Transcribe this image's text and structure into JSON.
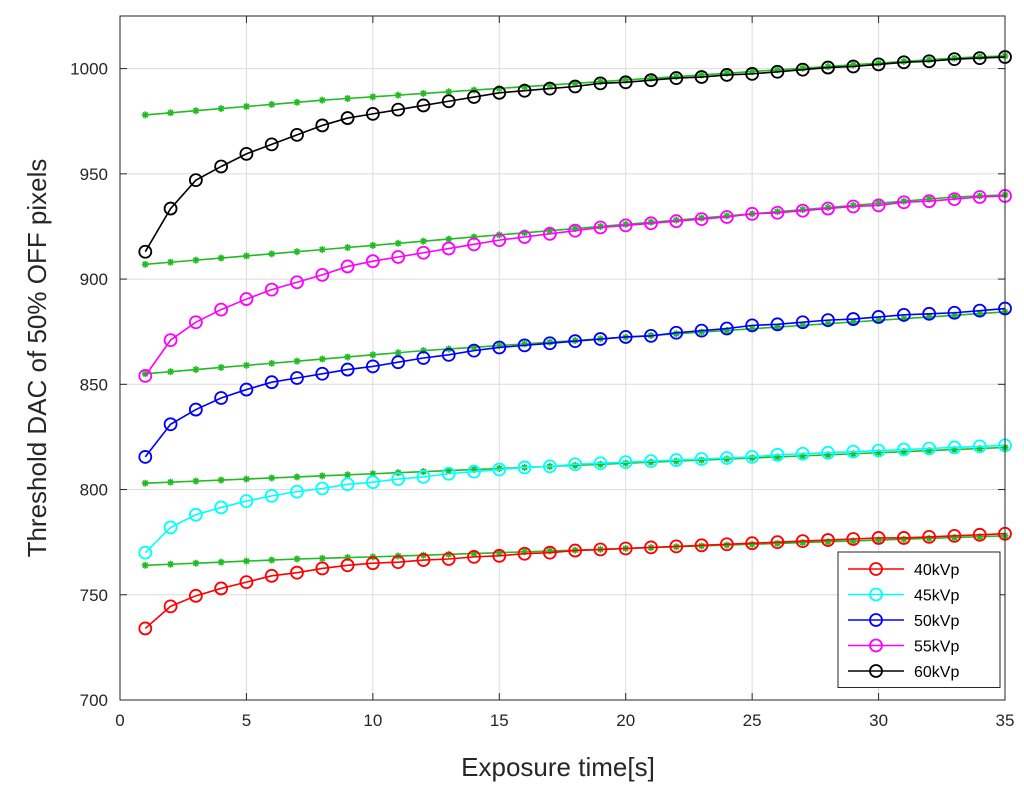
{
  "chart_data": {
    "type": "line",
    "title": "",
    "xlabel": "Exposure time[s]",
    "ylabel": "Threshold DAC of 50% OFF pixels",
    "xlim": [
      0,
      35
    ],
    "ylim": [
      700,
      1025
    ],
    "xticks": [
      0,
      5,
      10,
      15,
      20,
      25,
      30,
      35
    ],
    "yticks": [
      700,
      750,
      800,
      850,
      900,
      950,
      1000
    ],
    "grid": true,
    "legend_position": "bottom-right",
    "fit_color": "#22bb22",
    "x": [
      1,
      2,
      3,
      4,
      5,
      6,
      7,
      8,
      9,
      10,
      11,
      12,
      13,
      14,
      15,
      16,
      17,
      18,
      19,
      20,
      21,
      22,
      23,
      24,
      25,
      26,
      27,
      28,
      29,
      30,
      31,
      32,
      33,
      34,
      35
    ],
    "series": [
      {
        "name": "40kVp",
        "color": "#ff0000",
        "values": [
          734,
          744.5,
          749.5,
          753,
          756,
          759,
          760.5,
          762.5,
          764,
          765,
          765.5,
          766.5,
          767,
          768,
          768.5,
          769.5,
          770,
          771,
          771.5,
          772,
          772.5,
          773,
          773.5,
          774,
          774.5,
          775,
          775.5,
          776,
          776.5,
          777,
          777,
          777.5,
          778,
          778.5,
          779
        ],
        "fit": [
          764,
          764.5,
          765,
          765.5,
          766,
          766.5,
          767,
          767.3,
          767.7,
          768,
          768.4,
          768.8,
          769.2,
          769.6,
          770,
          770.4,
          770.8,
          771.2,
          771.6,
          772,
          772.4,
          772.8,
          773.2,
          773.6,
          774,
          774.4,
          774.8,
          775.2,
          775.6,
          776,
          776.4,
          776.8,
          777.2,
          777.6,
          778
        ]
      },
      {
        "name": "45kVp",
        "color": "#00ffff",
        "values": [
          770,
          782,
          788,
          791.5,
          794.5,
          797,
          799,
          800.5,
          802.5,
          803.5,
          805,
          806,
          807.5,
          808.5,
          809.5,
          810.5,
          811,
          812,
          812.5,
          813,
          813.5,
          814,
          814.5,
          815,
          815.5,
          816.5,
          817,
          817.5,
          818,
          818.5,
          819,
          819.5,
          820,
          820.5,
          821
        ],
        "fit": [
          803,
          803.5,
          804,
          804.5,
          805,
          805.5,
          806,
          806.5,
          807,
          807.5,
          808,
          808.5,
          809,
          809.5,
          810,
          810.5,
          811,
          811.5,
          812,
          812.5,
          813,
          813.5,
          814,
          814.5,
          815,
          815.5,
          816,
          816.5,
          817,
          817.5,
          818,
          818.5,
          819,
          819.5,
          820
        ]
      },
      {
        "name": "50kVp",
        "color": "#0000ff",
        "values": [
          815.5,
          831,
          838,
          843.5,
          847.5,
          851,
          853,
          855,
          857,
          858.5,
          860.5,
          862.5,
          864,
          866,
          867.5,
          868.5,
          869.5,
          870.5,
          871.5,
          872.5,
          873,
          874.5,
          875.5,
          876.5,
          878,
          878.5,
          879.5,
          880.5,
          881,
          882,
          883,
          883.5,
          884,
          885,
          886
        ],
        "fit": [
          855,
          856,
          857,
          858,
          859,
          860,
          861,
          862,
          863,
          864,
          865,
          866,
          866.8,
          867.6,
          868.4,
          869.2,
          870,
          870.8,
          871.6,
          872.4,
          873.2,
          874,
          874.8,
          875.6,
          876.4,
          877.2,
          878,
          878.8,
          879.6,
          880.4,
          881.2,
          882,
          882.8,
          883.6,
          884.4
        ]
      },
      {
        "name": "55kVp",
        "color": "#ff00ff",
        "values": [
          854,
          871,
          879.5,
          885.5,
          890.5,
          895,
          898.5,
          902,
          906,
          908.5,
          910.5,
          912.5,
          914.5,
          916.5,
          918.5,
          920,
          921.5,
          923,
          924.5,
          925.5,
          926.5,
          927.5,
          928.5,
          929.5,
          931,
          931.5,
          932.5,
          933.5,
          934.5,
          935,
          936.5,
          937,
          938,
          939,
          939.5
        ],
        "fit": [
          907,
          908,
          909,
          910,
          911,
          912,
          913,
          914,
          915,
          916,
          917,
          918,
          919,
          920,
          921,
          922,
          923,
          924,
          925,
          926,
          927,
          928,
          929,
          930,
          931,
          932,
          933,
          934,
          935,
          936,
          937,
          938,
          939,
          939.5,
          940
        ]
      },
      {
        "name": "60kVp",
        "color": "#000000",
        "values": [
          913,
          933.5,
          947,
          953.5,
          959.5,
          964,
          968.5,
          973,
          976.5,
          978.5,
          980.5,
          982.5,
          984.5,
          986.5,
          988.5,
          989.5,
          990.5,
          991.5,
          993,
          993.5,
          994.5,
          995.5,
          996,
          997,
          997.5,
          998.5,
          999.5,
          1000.5,
          1001,
          1002,
          1003,
          1003.5,
          1004.5,
          1005,
          1005.5
        ],
        "fit": [
          978,
          979,
          980,
          981,
          982,
          983,
          984,
          985,
          985.8,
          986.6,
          987.4,
          988.2,
          989,
          989.8,
          990.6,
          991.4,
          992.2,
          993,
          993.8,
          994.6,
          995.4,
          996.2,
          997,
          997.8,
          998.6,
          999.4,
          1000.2,
          1001,
          1001.8,
          1002.6,
          1003.4,
          1004.2,
          1005,
          1005.6,
          1006
        ]
      }
    ]
  }
}
